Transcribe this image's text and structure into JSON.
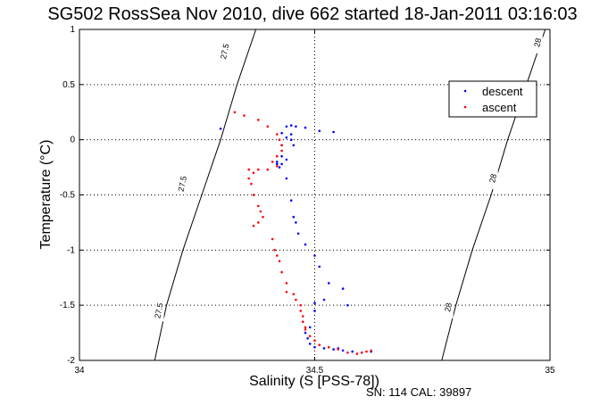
{
  "chart_data": {
    "type": "scatter",
    "title": "SG502 RossSea Nov 2010, dive 662 started 18-Jan-2011 03:16:03",
    "xlabel": "Salinity (S [PSS-78])",
    "ylabel": "Temperature (°C)",
    "xlim": [
      34,
      35
    ],
    "ylim": [
      -2,
      1
    ],
    "xticks": [
      "34",
      "34.5",
      "35"
    ],
    "yticks": [
      "-2",
      "-1.5",
      "-1",
      "-0.5",
      "0",
      "0.5",
      "1"
    ],
    "grid": true,
    "legend": {
      "placement": "top-right",
      "entries": [
        "descent",
        "ascent"
      ]
    },
    "footer": "SN: 114  CAL: 39897",
    "colors": {
      "descent": "#0000ff",
      "ascent": "#ff0000",
      "contour": "#000000"
    },
    "contours": [
      {
        "level": "27.5",
        "points": [
          [
            34.16,
            -2.0
          ],
          [
            34.185,
            -1.5
          ],
          [
            34.22,
            -1.0
          ],
          [
            34.26,
            -0.5
          ],
          [
            34.3,
            0.0
          ],
          [
            34.335,
            0.5
          ],
          [
            34.375,
            1.0
          ]
        ],
        "labels": [
          {
            "text": "27.5",
            "x": 34.17,
            "y": -1.55
          },
          {
            "text": "27.5",
            "x": 34.22,
            "y": -0.4
          },
          {
            "text": "27.5",
            "x": 34.31,
            "y": 0.8
          }
        ]
      },
      {
        "level": "28",
        "points": [
          [
            34.77,
            -2.0
          ],
          [
            34.8,
            -1.5
          ],
          [
            34.835,
            -1.0
          ],
          [
            34.875,
            -0.5
          ],
          [
            34.91,
            0.0
          ],
          [
            34.95,
            0.5
          ],
          [
            34.99,
            1.0
          ]
        ],
        "labels": [
          {
            "text": "28",
            "x": 34.785,
            "y": -1.52
          },
          {
            "text": "28",
            "x": 34.88,
            "y": -0.35
          },
          {
            "text": "28",
            "x": 34.975,
            "y": 0.88
          }
        ]
      }
    ],
    "series": [
      {
        "name": "descent",
        "points": [
          [
            34.3,
            0.1
          ],
          [
            34.44,
            0.12
          ],
          [
            34.45,
            0.13
          ],
          [
            34.46,
            0.12
          ],
          [
            34.48,
            0.11
          ],
          [
            34.51,
            0.08
          ],
          [
            34.54,
            0.07
          ],
          [
            34.45,
            0.05
          ],
          [
            34.44,
            0.02
          ],
          [
            34.43,
            -0.05
          ],
          [
            34.43,
            -0.15
          ],
          [
            34.42,
            -0.2
          ],
          [
            34.425,
            -0.25
          ],
          [
            34.42,
            -0.22
          ],
          [
            34.43,
            -0.22
          ],
          [
            34.44,
            -0.18
          ],
          [
            34.45,
            0.0
          ],
          [
            34.43,
            0.06
          ],
          [
            34.455,
            -0.05
          ],
          [
            34.44,
            -0.35
          ],
          [
            34.45,
            -0.55
          ],
          [
            34.455,
            -0.7
          ],
          [
            34.46,
            -0.75
          ],
          [
            34.465,
            -0.85
          ],
          [
            34.48,
            -0.95
          ],
          [
            34.5,
            -1.05
          ],
          [
            34.51,
            -1.15
          ],
          [
            34.53,
            -1.3
          ],
          [
            34.56,
            -1.35
          ],
          [
            34.57,
            -1.5
          ],
          [
            34.52,
            -1.45
          ],
          [
            34.5,
            -1.48
          ],
          [
            34.5,
            -1.55
          ],
          [
            34.49,
            -1.7
          ],
          [
            34.48,
            -1.75
          ],
          [
            34.485,
            -1.8
          ],
          [
            34.49,
            -1.85
          ],
          [
            34.5,
            -1.88
          ],
          [
            34.52,
            -1.89
          ],
          [
            34.54,
            -1.9
          ],
          [
            34.55,
            -1.89
          ],
          [
            34.56,
            -1.91
          ],
          [
            34.58,
            -1.92
          ],
          [
            34.6,
            -1.93
          ],
          [
            34.62,
            -1.92
          ]
        ]
      },
      {
        "name": "ascent",
        "points": [
          [
            34.33,
            0.25
          ],
          [
            34.35,
            0.22
          ],
          [
            34.38,
            0.18
          ],
          [
            34.4,
            0.12
          ],
          [
            34.42,
            0.05
          ],
          [
            34.425,
            0.0
          ],
          [
            34.43,
            -0.05
          ],
          [
            34.43,
            -0.1
          ],
          [
            34.42,
            -0.15
          ],
          [
            34.41,
            -0.2
          ],
          [
            34.42,
            -0.24
          ],
          [
            34.4,
            -0.27
          ],
          [
            34.38,
            -0.27
          ],
          [
            34.36,
            -0.27
          ],
          [
            34.37,
            -0.3
          ],
          [
            34.36,
            -0.35
          ],
          [
            34.365,
            -0.4
          ],
          [
            34.37,
            -0.5
          ],
          [
            34.38,
            -0.6
          ],
          [
            34.385,
            -0.65
          ],
          [
            34.39,
            -0.7
          ],
          [
            34.38,
            -0.75
          ],
          [
            34.37,
            -0.78
          ],
          [
            34.41,
            -0.9
          ],
          [
            34.415,
            -1.0
          ],
          [
            34.42,
            -1.05
          ],
          [
            34.425,
            -1.1
          ],
          [
            34.43,
            -1.2
          ],
          [
            34.44,
            -1.3
          ],
          [
            34.44,
            -1.38
          ],
          [
            34.455,
            -1.4
          ],
          [
            34.46,
            -1.45
          ],
          [
            34.47,
            -1.5
          ],
          [
            34.47,
            -1.55
          ],
          [
            34.475,
            -1.6
          ],
          [
            34.475,
            -1.65
          ],
          [
            34.48,
            -1.7
          ],
          [
            34.48,
            -1.72
          ],
          [
            34.49,
            -1.78
          ],
          [
            34.5,
            -1.82
          ],
          [
            34.51,
            -1.86
          ],
          [
            34.53,
            -1.88
          ],
          [
            34.55,
            -1.9
          ],
          [
            34.57,
            -1.93
          ],
          [
            34.59,
            -1.94
          ],
          [
            34.6,
            -1.93
          ],
          [
            34.61,
            -1.92
          ],
          [
            34.62,
            -1.91
          ]
        ]
      }
    ]
  }
}
